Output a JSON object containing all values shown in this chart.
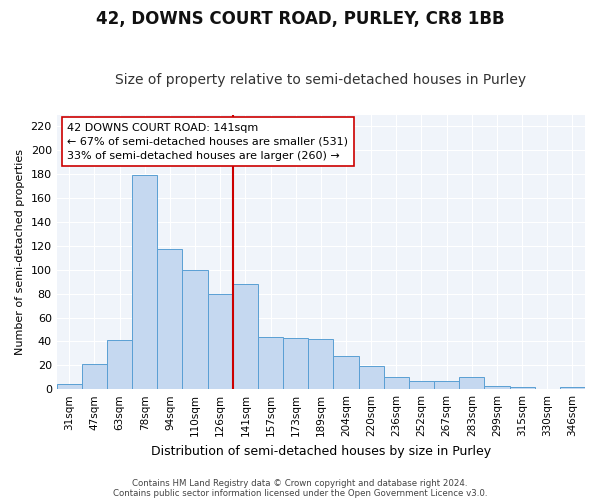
{
  "title1": "42, DOWNS COURT ROAD, PURLEY, CR8 1BB",
  "title2": "Size of property relative to semi-detached houses in Purley",
  "xlabel": "Distribution of semi-detached houses by size in Purley",
  "ylabel": "Number of semi-detached properties",
  "categories": [
    "31sqm",
    "47sqm",
    "63sqm",
    "78sqm",
    "94sqm",
    "110sqm",
    "126sqm",
    "141sqm",
    "157sqm",
    "173sqm",
    "189sqm",
    "204sqm",
    "220sqm",
    "236sqm",
    "252sqm",
    "267sqm",
    "283sqm",
    "299sqm",
    "315sqm",
    "330sqm",
    "346sqm"
  ],
  "values": [
    4,
    21,
    41,
    179,
    117,
    100,
    80,
    88,
    44,
    43,
    42,
    28,
    19,
    10,
    7,
    7,
    10,
    3,
    2,
    0,
    2
  ],
  "bar_color": "#c5d8f0",
  "bar_edge_color": "#5a9fd4",
  "vline_color": "#cc0000",
  "annotation_title": "42 DOWNS COURT ROAD: 141sqm",
  "annotation_line1": "← 67% of semi-detached houses are smaller (531)",
  "annotation_line2": "33% of semi-detached houses are larger (260) →",
  "annotation_box_color": "#ffffff",
  "annotation_box_edge": "#cc0000",
  "ylim": [
    0,
    230
  ],
  "yticks": [
    0,
    20,
    40,
    60,
    80,
    100,
    120,
    140,
    160,
    180,
    200,
    220
  ],
  "footer1": "Contains HM Land Registry data © Crown copyright and database right 2024.",
  "footer2": "Contains public sector information licensed under the Open Government Licence v3.0.",
  "bg_color": "#ffffff",
  "plot_bg_color": "#f0f4fa",
  "grid_color": "#ffffff",
  "title1_fontsize": 12,
  "title2_fontsize": 10,
  "annotation_fontsize": 8,
  "ylabel_fontsize": 8,
  "xlabel_fontsize": 9
}
